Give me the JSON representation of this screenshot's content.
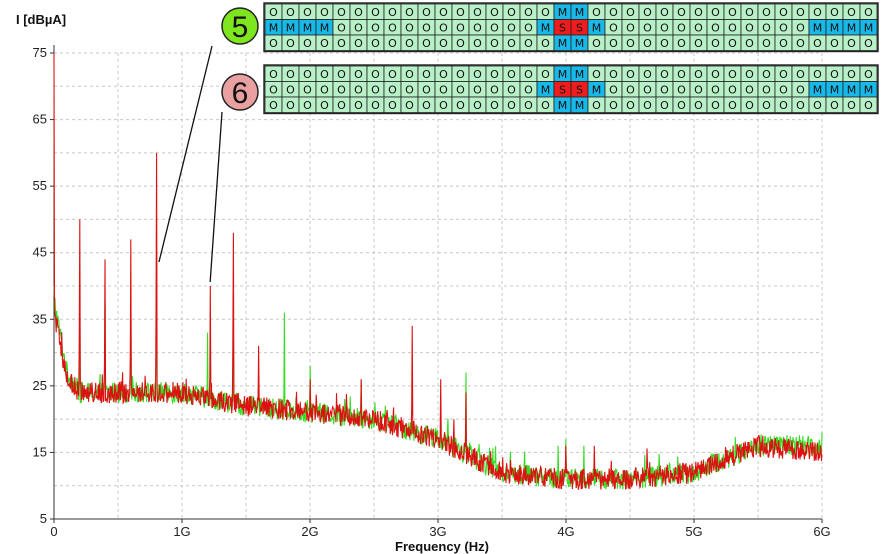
{
  "chart_data": {
    "type": "line",
    "title": "",
    "ylabel": "I [dBµA]",
    "xlabel": "Frequency (Hz)",
    "ylim": [
      5,
      75
    ],
    "xlim": [
      0,
      6000000000
    ],
    "y_ticks": [
      "75",
      "65",
      "55",
      "45",
      "35",
      "25",
      "15",
      "5"
    ],
    "y_tick_values": [
      75,
      65,
      55,
      45,
      35,
      25,
      15,
      5
    ],
    "x_ticks": [
      "0",
      "1G",
      "2G",
      "3G",
      "4G",
      "5G",
      "6G"
    ],
    "x_tick_values": [
      0,
      1000000000,
      2000000000,
      3000000000,
      4000000000,
      5000000000,
      6000000000
    ],
    "grid": "dashed",
    "colors": {
      "series_a": "#33dd22",
      "series_b": "#dd1111"
    },
    "series": [
      {
        "color": "#33dd22",
        "baseline": [
          [
            0,
            38
          ],
          [
            100000000,
            27
          ],
          [
            200000000,
            24
          ],
          [
            1000000000,
            24
          ],
          [
            1500000000,
            22
          ],
          [
            2000000000,
            21
          ],
          [
            2500000000,
            20
          ],
          [
            3000000000,
            17
          ],
          [
            3500000000,
            12
          ],
          [
            4000000000,
            11
          ],
          [
            4500000000,
            11
          ],
          [
            5000000000,
            12
          ],
          [
            5500000000,
            16
          ],
          [
            6000000000,
            16
          ]
        ],
        "peaks": [
          [
            0,
            40
          ],
          [
            200000000,
            38
          ],
          [
            400000000,
            38
          ],
          [
            600000000,
            38
          ],
          [
            800000000,
            44
          ],
          [
            1200000000,
            33
          ],
          [
            1400000000,
            33
          ],
          [
            1600000000,
            26
          ],
          [
            1800000000,
            36
          ],
          [
            2000000000,
            28
          ],
          [
            2400000000,
            26
          ],
          [
            3220000000,
            27
          ],
          [
            3940000000,
            16
          ],
          [
            4000000000,
            17
          ],
          [
            4140000000,
            16
          ],
          [
            6000000000,
            18
          ]
        ]
      },
      {
        "color": "#dd1111",
        "baseline": [
          [
            0,
            36
          ],
          [
            100000000,
            26
          ],
          [
            200000000,
            24
          ],
          [
            1000000000,
            24
          ],
          [
            1500000000,
            22
          ],
          [
            2000000000,
            21
          ],
          [
            2500000000,
            20
          ],
          [
            3000000000,
            17
          ],
          [
            3500000000,
            12
          ],
          [
            4000000000,
            11
          ],
          [
            4500000000,
            11
          ],
          [
            5000000000,
            12
          ],
          [
            5500000000,
            16
          ],
          [
            6000000000,
            15
          ]
        ],
        "peaks": [
          [
            0,
            75
          ],
          [
            200000000,
            50
          ],
          [
            400000000,
            44
          ],
          [
            600000000,
            47
          ],
          [
            800000000,
            60
          ],
          [
            1220000000,
            40
          ],
          [
            1400000000,
            48
          ],
          [
            1600000000,
            31
          ],
          [
            2000000000,
            26
          ],
          [
            2400000000,
            26
          ],
          [
            2800000000,
            34
          ],
          [
            3020000000,
            26
          ],
          [
            3220000000,
            24
          ],
          [
            4000000000,
            16
          ],
          [
            4220000000,
            16
          ]
        ]
      }
    ],
    "annotations": [
      {
        "label": "5",
        "target_x": 820000000,
        "target_y": 43
      },
      {
        "label": "6",
        "target_x": 1220000000,
        "target_y": 40
      }
    ],
    "grid_panels": [
      {
        "label": "5",
        "badge_color": "#7fe51f",
        "rows": [
          [
            "O",
            "O",
            "O",
            "O",
            "O",
            "O",
            "O",
            "O",
            "O",
            "O",
            "O",
            "O",
            "O",
            "O",
            "O",
            "O",
            "O",
            "M",
            "M",
            "O",
            "O",
            "O",
            "O",
            "O",
            "O",
            "O",
            "O",
            "O",
            "O",
            "O",
            "O",
            "O",
            "O",
            "O",
            "O",
            "O"
          ],
          [
            "M",
            "M",
            "M",
            "M",
            "O",
            "O",
            "O",
            "O",
            "O",
            "O",
            "O",
            "O",
            "O",
            "O",
            "O",
            "O",
            "M",
            "S",
            "S",
            "M",
            "O",
            "O",
            "O",
            "O",
            "O",
            "O",
            "O",
            "O",
            "O",
            "O",
            "O",
            "O",
            "M",
            "M",
            "M",
            "M"
          ],
          [
            "O",
            "O",
            "O",
            "O",
            "O",
            "O",
            "O",
            "O",
            "O",
            "O",
            "O",
            "O",
            "O",
            "O",
            "O",
            "O",
            "O",
            "M",
            "M",
            "O",
            "O",
            "O",
            "O",
            "O",
            "O",
            "O",
            "O",
            "O",
            "O",
            "O",
            "O",
            "O",
            "O",
            "O",
            "O",
            "O"
          ]
        ]
      },
      {
        "label": "6",
        "badge_color": "#e8a0a0",
        "rows": [
          [
            "O",
            "O",
            "O",
            "O",
            "O",
            "O",
            "O",
            "O",
            "O",
            "O",
            "O",
            "O",
            "O",
            "O",
            "O",
            "O",
            "O",
            "M",
            "M",
            "O",
            "O",
            "O",
            "O",
            "O",
            "O",
            "O",
            "O",
            "O",
            "O",
            "O",
            "O",
            "O",
            "O",
            "O",
            "O",
            "O"
          ],
          [
            "O",
            "O",
            "O",
            "O",
            "O",
            "O",
            "O",
            "O",
            "O",
            "O",
            "O",
            "O",
            "O",
            "O",
            "O",
            "O",
            "M",
            "S",
            "S",
            "M",
            "O",
            "O",
            "O",
            "O",
            "O",
            "O",
            "O",
            "O",
            "O",
            "O",
            "O",
            "O",
            "M",
            "M",
            "M",
            "M"
          ],
          [
            "O",
            "O",
            "O",
            "O",
            "O",
            "O",
            "O",
            "O",
            "O",
            "O",
            "O",
            "O",
            "O",
            "O",
            "O",
            "O",
            "O",
            "M",
            "M",
            "O",
            "O",
            "O",
            "O",
            "O",
            "O",
            "O",
            "O",
            "O",
            "O",
            "O",
            "O",
            "O",
            "O",
            "O",
            "O",
            "O"
          ]
        ]
      }
    ],
    "cell_colors": {
      "O": "#b8f0c8",
      "M": "#18b8e8",
      "S": "#ee1c1c"
    }
  }
}
